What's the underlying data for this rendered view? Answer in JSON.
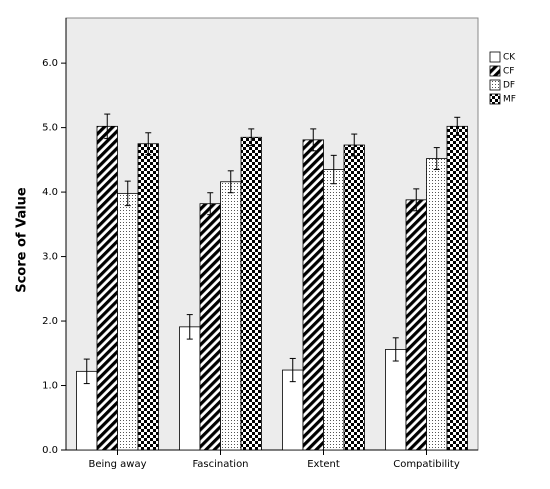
{
  "chart_data": {
    "type": "bar",
    "y_label": "Score of Value",
    "categories": [
      "Being away",
      "Fascination",
      "Extent",
      "Compatibility"
    ],
    "series": [
      {
        "name": "CK",
        "pattern": "none",
        "values": [
          1.22,
          1.91,
          1.24,
          1.56
        ],
        "errors": [
          0.19,
          0.19,
          0.18,
          0.18
        ]
      },
      {
        "name": "CF",
        "pattern": "diagonal",
        "values": [
          5.02,
          3.82,
          4.81,
          3.88
        ],
        "errors": [
          0.19,
          0.17,
          0.17,
          0.17
        ]
      },
      {
        "name": "DF",
        "pattern": "dots",
        "values": [
          3.98,
          4.16,
          4.35,
          4.52
        ],
        "errors": [
          0.19,
          0.17,
          0.22,
          0.17
        ]
      },
      {
        "name": "MF",
        "pattern": "checker",
        "values": [
          4.75,
          4.85,
          4.73,
          5.02
        ],
        "errors": [
          0.17,
          0.13,
          0.17,
          0.14
        ]
      }
    ],
    "ylim": [
      0,
      6.7
    ],
    "yticks": [
      {
        "value": 0,
        "label": "0.0"
      },
      {
        "value": 1,
        "label": "1.0"
      },
      {
        "value": 2,
        "label": "2.0"
      },
      {
        "value": 3,
        "label": "3.0"
      },
      {
        "value": 4,
        "label": "4.0"
      },
      {
        "value": 5,
        "label": "5.0"
      },
      {
        "value": 6,
        "label": "6.0"
      }
    ],
    "legend": "right"
  }
}
